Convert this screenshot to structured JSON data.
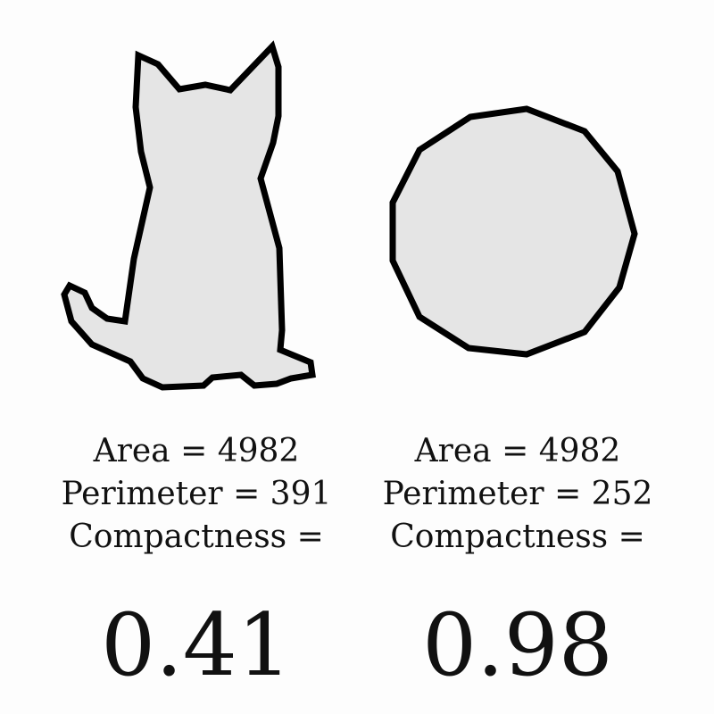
{
  "shapes": [
    {
      "id": "cat",
      "area_label": "Area = 4982",
      "perimeter_label": "Perimeter = 391",
      "compactness_label": "Compactness =",
      "compactness_value": "0.41"
    },
    {
      "id": "polygon",
      "area_label": "Area = 4982",
      "perimeter_label": "Perimeter = 252",
      "compactness_label": "Compactness =",
      "compactness_value": "0.98"
    }
  ],
  "colors": {
    "shape_fill": "#e5e5e5",
    "shape_stroke": "#000000",
    "background": "#fdfdfd"
  }
}
